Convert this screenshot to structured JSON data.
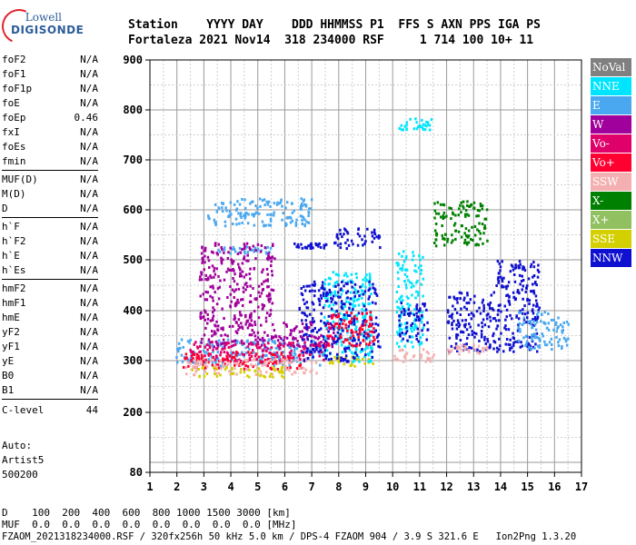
{
  "logo": {
    "top": "Lowell",
    "bottom": "DIGISONDE"
  },
  "header": {
    "labels": "Station    YYYY DAY    DDD HHMMSS P1  FFS S AXN PPS IGA PS",
    "values": "Fortaleza 2021 Nov14  318 234000 RSF     1 714 100 10+ 11"
  },
  "params": {
    "group1": [
      {
        "name": "foF2",
        "value": "N/A"
      },
      {
        "name": "foF1",
        "value": "N/A"
      },
      {
        "name": "foF1p",
        "value": "N/A"
      },
      {
        "name": "foE",
        "value": "N/A"
      },
      {
        "name": "foEp",
        "value": "0.46"
      },
      {
        "name": "fxI",
        "value": "N/A"
      },
      {
        "name": "foEs",
        "value": "N/A"
      },
      {
        "name": "fmin",
        "value": "N/A"
      }
    ],
    "group2": [
      {
        "name": "MUF(D)",
        "value": "N/A"
      },
      {
        "name": "M(D)",
        "value": "N/A"
      },
      {
        "name": "D",
        "value": "N/A"
      }
    ],
    "group3": [
      {
        "name": "h`F",
        "value": "N/A"
      },
      {
        "name": "h`F2",
        "value": "N/A"
      },
      {
        "name": "h`E",
        "value": "N/A"
      },
      {
        "name": "h`Es",
        "value": "N/A"
      }
    ],
    "group4": [
      {
        "name": "hmF2",
        "value": "N/A"
      },
      {
        "name": "hmF1",
        "value": "N/A"
      },
      {
        "name": "hmE",
        "value": "N/A"
      },
      {
        "name": "yF2",
        "value": "N/A"
      },
      {
        "name": "yF1",
        "value": "N/A"
      },
      {
        "name": "yE",
        "value": "N/A"
      },
      {
        "name": "B0",
        "value": "N/A"
      },
      {
        "name": "B1",
        "value": "N/A"
      }
    ],
    "clevel": {
      "name": "C-level",
      "value": "44"
    }
  },
  "auto": {
    "line1": "Auto:",
    "line2": "Artist5",
    "line3": "500200"
  },
  "legend": [
    {
      "label": "NoVal",
      "color": "#808080"
    },
    {
      "label": "NNE",
      "color": "#00e5ff"
    },
    {
      "label": "E",
      "color": "#4aa8f0"
    },
    {
      "label": "W",
      "color": "#a0009c"
    },
    {
      "label": "Vo-",
      "color": "#e0006a"
    },
    {
      "label": "Vo+",
      "color": "#ff0030"
    },
    {
      "label": "SSW",
      "color": "#f4b0b0"
    },
    {
      "label": "X-",
      "color": "#008000"
    },
    {
      "label": "X+",
      "color": "#90c060"
    },
    {
      "label": "SSE",
      "color": "#d4d000"
    },
    {
      "label": "NNW",
      "color": "#1010d0"
    }
  ],
  "bottom": {
    "d_row": "D    100  200  400  600  800 1000 1500 3000 [km]",
    "muf_row": "MUF  0.0  0.0  0.0  0.0  0.0  0.0  0.0  0.0 [MHz]",
    "footer": "FZAOM_2021318234000.RSF / 320fx256h 50 kHz 5.0 km / DPS-4 FZAOM 904 / 3.9 S 321.6 E   Ion2Png 1.3.20"
  },
  "chart_data": {
    "type": "scatter",
    "xlim": [
      1,
      17
    ],
    "ylim": [
      80,
      900
    ],
    "xticks": [
      1,
      2,
      3,
      4,
      5,
      6,
      7,
      8,
      9,
      10,
      11,
      12,
      13,
      14,
      15,
      16,
      17
    ],
    "yticks": [
      80,
      200,
      300,
      400,
      500,
      600,
      700,
      800,
      900
    ],
    "grid": true,
    "legend_position": "right",
    "clusters": [
      {
        "series": "E",
        "x": [
          1.9,
          7.4
        ],
        "y": [
          292,
          345
        ]
      },
      {
        "series": "E",
        "x": [
          3.1,
          7.0
        ],
        "y": [
          570,
          625
        ]
      },
      {
        "series": "E",
        "x": [
          3.5,
          5.5
        ],
        "y": [
          515,
          530
        ]
      },
      {
        "series": "W",
        "x": [
          2.8,
          5.6
        ],
        "y": [
          380,
          540
        ]
      },
      {
        "series": "W",
        "x": [
          2.8,
          7.8
        ],
        "y": [
          330,
          380
        ]
      },
      {
        "series": "Vo-",
        "x": [
          2.4,
          7.6
        ],
        "y": [
          300,
          340
        ]
      },
      {
        "series": "Vo+",
        "x": [
          2.2,
          6.6
        ],
        "y": [
          285,
          320
        ]
      },
      {
        "series": "SSW",
        "x": [
          2.3,
          7.2
        ],
        "y": [
          275,
          305
        ]
      },
      {
        "series": "SSE",
        "x": [
          2.5,
          6.0
        ],
        "y": [
          270,
          290
        ]
      },
      {
        "series": "SSE",
        "x": [
          7.5,
          9.4
        ],
        "y": [
          290,
          310
        ]
      },
      {
        "series": "NNE",
        "x": [
          7.4,
          9.2
        ],
        "y": [
          300,
          480
        ]
      },
      {
        "series": "NNW",
        "x": [
          6.5,
          9.5
        ],
        "y": [
          300,
          460
        ]
      },
      {
        "series": "NNW",
        "x": [
          6.2,
          7.5
        ],
        "y": [
          525,
          535
        ]
      },
      {
        "series": "NNW",
        "x": [
          7.8,
          9.5
        ],
        "y": [
          525,
          565
        ]
      },
      {
        "series": "Vo+",
        "x": [
          7.5,
          9.3
        ],
        "y": [
          330,
          400
        ]
      },
      {
        "series": "NNE",
        "x": [
          10.1,
          11.1
        ],
        "y": [
          330,
          520
        ]
      },
      {
        "series": "NNW",
        "x": [
          10.2,
          11.3
        ],
        "y": [
          340,
          420
        ]
      },
      {
        "series": "SSW",
        "x": [
          10.0,
          11.5
        ],
        "y": [
          300,
          325
        ]
      },
      {
        "series": "NNE",
        "x": [
          10.2,
          11.4
        ],
        "y": [
          760,
          785
        ]
      },
      {
        "series": "NNW",
        "x": [
          12.0,
          13.8
        ],
        "y": [
          320,
          440
        ]
      },
      {
        "series": "SSW",
        "x": [
          12.0,
          13.5
        ],
        "y": [
          315,
          335
        ]
      },
      {
        "series": "NNW",
        "x": [
          13.8,
          15.4
        ],
        "y": [
          320,
          500
        ]
      },
      {
        "series": "E",
        "x": [
          14.6,
          16.5
        ],
        "y": [
          325,
          400
        ]
      },
      {
        "series": "X-",
        "x": [
          11.5,
          13.5
        ],
        "y": [
          530,
          620
        ]
      }
    ]
  }
}
